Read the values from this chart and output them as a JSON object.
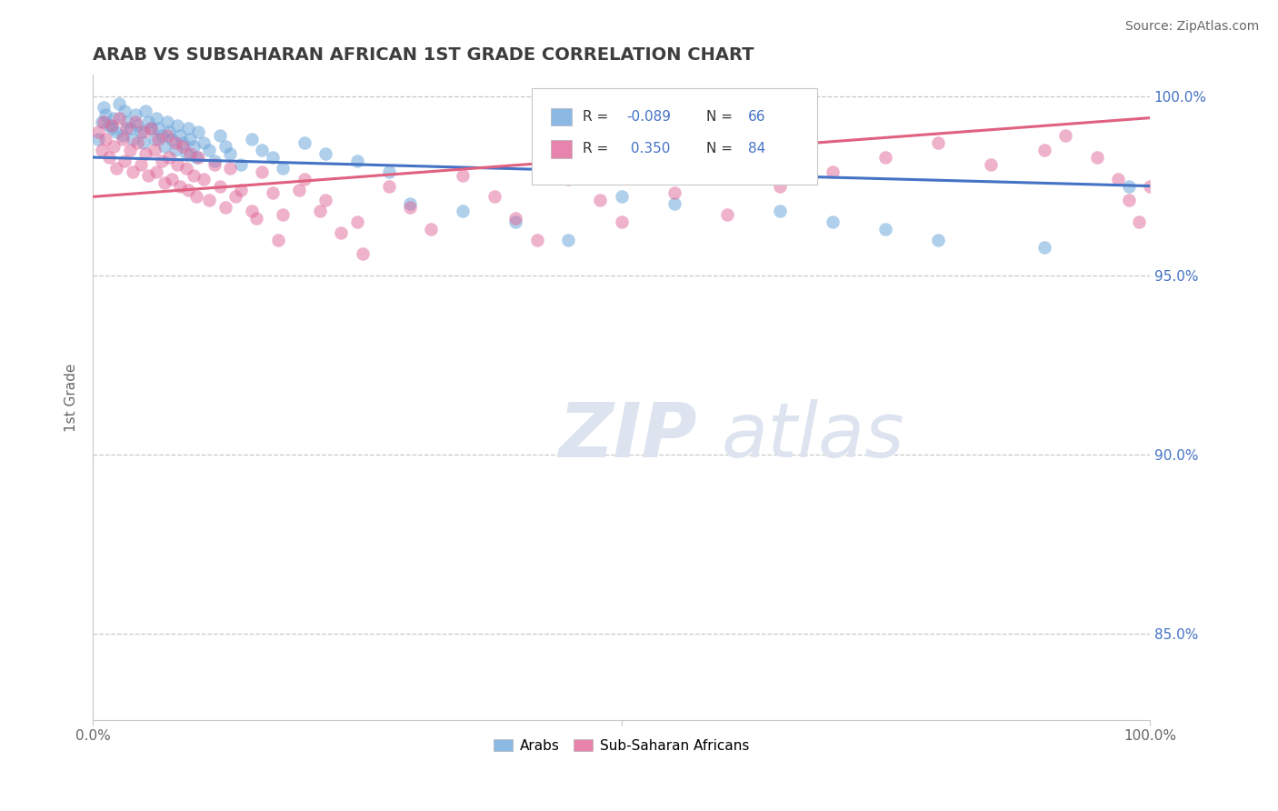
{
  "title": "ARAB VS SUBSAHARAN AFRICAN 1ST GRADE CORRELATION CHART",
  "source_text": "Source: ZipAtlas.com",
  "ylabel": "1st Grade",
  "xlim": [
    0.0,
    1.0
  ],
  "ylim": [
    0.826,
    1.006
  ],
  "ytick_vals": [
    0.85,
    0.9,
    0.95,
    1.0
  ],
  "ytick_labels": [
    "85.0%",
    "90.0%",
    "95.0%",
    "100.0%"
  ],
  "legend_arab_R": "-0.089",
  "legend_arab_N": "66",
  "legend_sub_R": "0.350",
  "legend_sub_N": "84",
  "arab_color": "#6fa8dc",
  "sub_color": "#e06699",
  "arab_line_color": "#4472c4",
  "sub_line_color": "#e06080",
  "title_color": "#3d3d3d",
  "axis_color": "#666666",
  "background_color": "#ffffff",
  "grid_color": "#c8c8c8",
  "watermark_color": "#dde4f0",
  "arab_x": [
    0.005,
    0.008,
    0.01,
    0.012,
    0.015,
    0.018,
    0.02,
    0.022,
    0.025,
    0.028,
    0.03,
    0.032,
    0.035,
    0.038,
    0.04,
    0.042,
    0.045,
    0.048,
    0.05,
    0.052,
    0.055,
    0.058,
    0.06,
    0.062,
    0.065,
    0.068,
    0.07,
    0.072,
    0.075,
    0.078,
    0.08,
    0.082,
    0.085,
    0.088,
    0.09,
    0.092,
    0.095,
    0.098,
    0.1,
    0.105,
    0.11,
    0.115,
    0.12,
    0.125,
    0.13,
    0.14,
    0.15,
    0.16,
    0.17,
    0.18,
    0.2,
    0.22,
    0.25,
    0.28,
    0.3,
    0.35,
    0.4,
    0.45,
    0.5,
    0.55,
    0.65,
    0.7,
    0.75,
    0.8,
    0.9,
    0.98
  ],
  "arab_y": [
    0.988,
    0.993,
    0.997,
    0.995,
    0.992,
    0.991,
    0.994,
    0.99,
    0.998,
    0.989,
    0.996,
    0.993,
    0.991,
    0.988,
    0.995,
    0.992,
    0.99,
    0.987,
    0.996,
    0.993,
    0.991,
    0.988,
    0.994,
    0.991,
    0.989,
    0.986,
    0.993,
    0.99,
    0.988,
    0.985,
    0.992,
    0.989,
    0.987,
    0.984,
    0.991,
    0.988,
    0.986,
    0.983,
    0.99,
    0.987,
    0.985,
    0.982,
    0.989,
    0.986,
    0.984,
    0.981,
    0.988,
    0.985,
    0.983,
    0.98,
    0.987,
    0.984,
    0.982,
    0.979,
    0.97,
    0.968,
    0.965,
    0.96,
    0.972,
    0.97,
    0.968,
    0.965,
    0.963,
    0.96,
    0.958,
    0.975
  ],
  "sub_x": [
    0.005,
    0.008,
    0.01,
    0.012,
    0.015,
    0.018,
    0.02,
    0.022,
    0.025,
    0.028,
    0.03,
    0.032,
    0.035,
    0.038,
    0.04,
    0.042,
    0.045,
    0.048,
    0.05,
    0.052,
    0.055,
    0.058,
    0.06,
    0.062,
    0.065,
    0.068,
    0.07,
    0.072,
    0.075,
    0.078,
    0.08,
    0.082,
    0.085,
    0.088,
    0.09,
    0.092,
    0.095,
    0.098,
    0.1,
    0.105,
    0.11,
    0.115,
    0.12,
    0.125,
    0.13,
    0.14,
    0.15,
    0.16,
    0.17,
    0.18,
    0.2,
    0.22,
    0.25,
    0.28,
    0.3,
    0.32,
    0.35,
    0.38,
    0.4,
    0.42,
    0.45,
    0.48,
    0.5,
    0.55,
    0.6,
    0.65,
    0.7,
    0.75,
    0.8,
    0.85,
    0.9,
    0.92,
    0.95,
    0.97,
    0.98,
    0.99,
    1.0,
    0.135,
    0.155,
    0.175,
    0.195,
    0.215,
    0.235,
    0.255
  ],
  "sub_y": [
    0.99,
    0.985,
    0.993,
    0.988,
    0.983,
    0.992,
    0.986,
    0.98,
    0.994,
    0.988,
    0.982,
    0.991,
    0.985,
    0.979,
    0.993,
    0.987,
    0.981,
    0.99,
    0.984,
    0.978,
    0.991,
    0.985,
    0.979,
    0.988,
    0.982,
    0.976,
    0.989,
    0.983,
    0.977,
    0.987,
    0.981,
    0.975,
    0.986,
    0.98,
    0.974,
    0.984,
    0.978,
    0.972,
    0.983,
    0.977,
    0.971,
    0.981,
    0.975,
    0.969,
    0.98,
    0.974,
    0.968,
    0.979,
    0.973,
    0.967,
    0.977,
    0.971,
    0.965,
    0.975,
    0.969,
    0.963,
    0.978,
    0.972,
    0.966,
    0.96,
    0.977,
    0.971,
    0.965,
    0.973,
    0.967,
    0.975,
    0.979,
    0.983,
    0.987,
    0.981,
    0.985,
    0.989,
    0.983,
    0.977,
    0.971,
    0.965,
    0.975,
    0.972,
    0.966,
    0.96,
    0.974,
    0.968,
    0.962,
    0.956
  ]
}
